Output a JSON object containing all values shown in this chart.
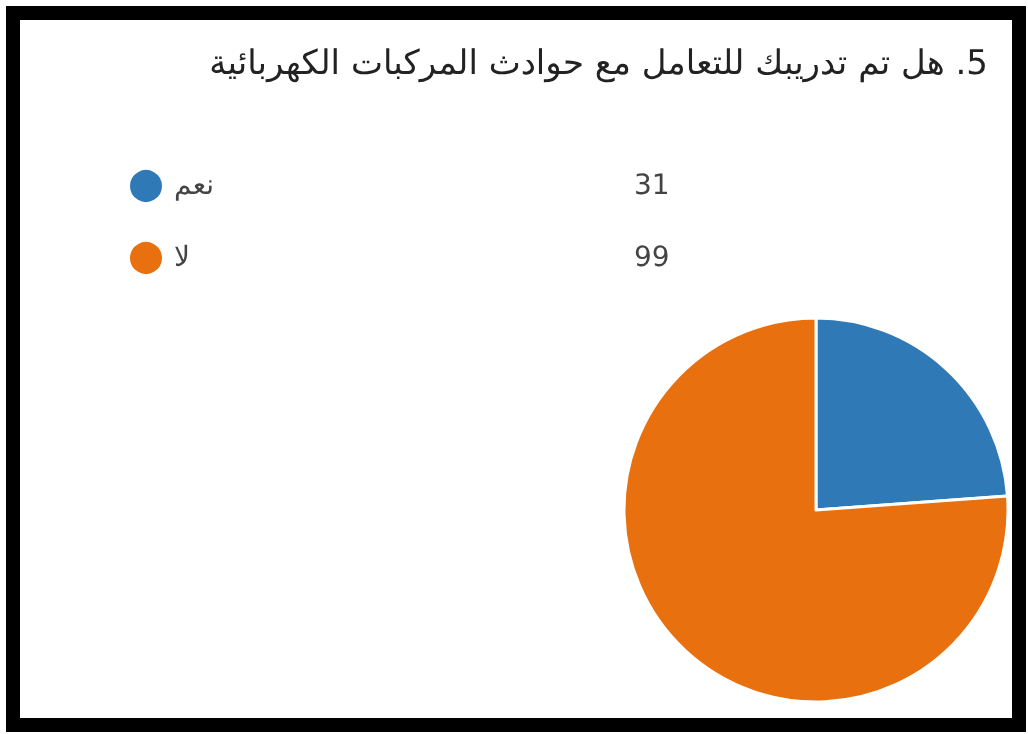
{
  "chart_data": {
    "type": "pie",
    "title": "5. هل تم تدريبك للتعامل مع حوادث المركبات الكهربائية",
    "categories": [
      "نعم",
      "لا"
    ],
    "values": [
      31,
      99
    ],
    "colors": [
      "#2f79b7",
      "#e8700e"
    ],
    "legend": "top left",
    "data_labels": true
  }
}
